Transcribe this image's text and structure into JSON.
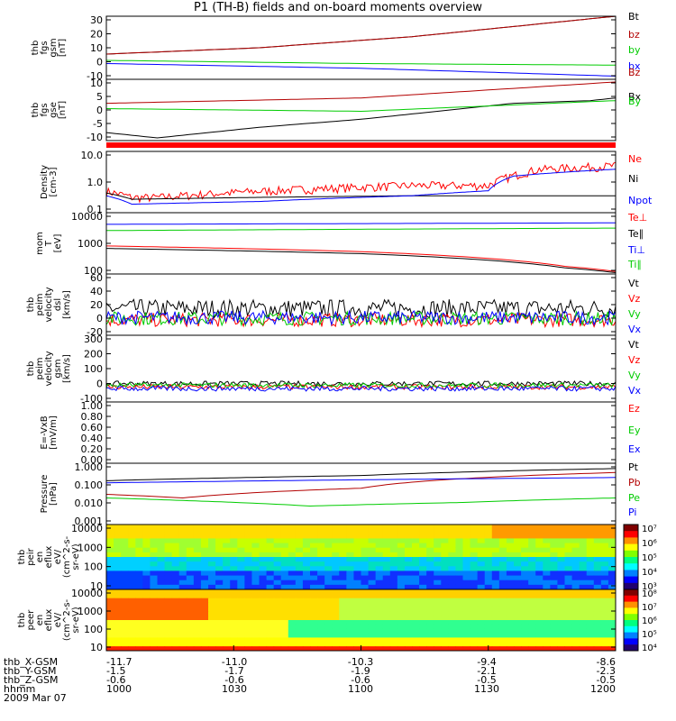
{
  "title": "P1 (TH-B) fields and on-board moments overview",
  "chart_data": [
    {
      "type": "line",
      "panel": "fgs",
      "ylabel": [
        "thb",
        "fgs",
        "gsm",
        "[nT]"
      ],
      "ylim": [
        -10,
        30
      ],
      "yticks": [
        "30",
        "20",
        "10",
        "0",
        "-10"
      ],
      "series": [
        {
          "name": "Bt",
          "color": "#000000",
          "x": [
            0,
            0.3,
            0.6,
            1.0
          ],
          "y": [
            6,
            10,
            17,
            30
          ]
        },
        {
          "name": "bz",
          "color": "#b30000",
          "x": [
            0,
            0.3,
            0.6,
            1.0
          ],
          "y": [
            6,
            10,
            17,
            30
          ]
        },
        {
          "name": "by",
          "color": "#00cc00",
          "x": [
            0,
            0.5,
            1.0
          ],
          "y": [
            2,
            0,
            -1
          ]
        },
        {
          "name": "bx",
          "color": "#0000ff",
          "x": [
            0,
            0.5,
            1.0
          ],
          "y": [
            0,
            -3,
            -8
          ]
        }
      ]
    },
    {
      "type": "line",
      "panel": "fgs-gse",
      "ylabel": [
        "thb",
        "fgs",
        "gse",
        "[nT]"
      ],
      "ylim": [
        -13,
        10
      ],
      "yticks": [
        "10",
        "5",
        "0",
        "-5",
        "-10"
      ],
      "series": [
        {
          "name": "Bz",
          "color": "#b30000",
          "x": [
            0,
            0.5,
            1.0
          ],
          "y": [
            1,
            3,
            9
          ]
        },
        {
          "name": "Bx",
          "color": "#000000",
          "x": [
            0,
            0.1,
            0.3,
            0.5,
            0.7,
            0.8,
            0.95,
            1.0
          ],
          "y": [
            -10,
            -12,
            -8,
            -5,
            -1,
            1,
            2,
            3
          ]
        },
        {
          "name": "By",
          "color": "#00cc00",
          "x": [
            0,
            0.5,
            1.0
          ],
          "y": [
            -1,
            -2,
            2
          ]
        }
      ]
    },
    {
      "type": "line",
      "panel": "density",
      "ylabel": [
        "Density",
        "[cm-3]"
      ],
      "log": true,
      "ylim": [
        0.1,
        15
      ],
      "yticks": [
        "10.0",
        "1.0",
        "0.1"
      ],
      "series": [
        {
          "name": "Ne",
          "color": "#ff0000",
          "x": [
            0,
            0.05,
            0.1,
            0.3,
            0.6,
            0.75,
            0.8,
            0.85,
            1.0
          ],
          "y": [
            0.5,
            0.3,
            0.3,
            0.5,
            0.8,
            0.8,
            1.8,
            3.0,
            4.0
          ]
        },
        {
          "name": "Ni",
          "color": "#000000",
          "x": [
            0,
            0.05,
            0.3,
            0.6,
            1.0
          ],
          "y": [
            0.5,
            0.3,
            0.35,
            0.4,
            0.4
          ]
        },
        {
          "name": "Npot",
          "color": "#0000ff",
          "x": [
            0,
            0.05,
            0.3,
            0.6,
            0.75,
            0.8,
            1.0
          ],
          "y": [
            0.4,
            0.2,
            0.25,
            0.4,
            0.6,
            2.0,
            3.5
          ]
        }
      ]
    },
    {
      "type": "line",
      "panel": "temperature",
      "ylabel": [
        "mom",
        "T",
        "[eV]"
      ],
      "log": true,
      "ylim": [
        40,
        10000
      ],
      "yticks": [
        "10000",
        "1000",
        "100"
      ],
      "series": [
        {
          "name": "Te⊥",
          "color": "#ff0000",
          "x": [
            0,
            0.5,
            0.9,
            1.0
          ],
          "y": [
            500,
            300,
            80,
            50
          ]
        },
        {
          "name": "Te∥",
          "color": "#000000",
          "x": [
            0,
            0.5,
            0.9,
            1.0
          ],
          "y": [
            400,
            250,
            70,
            45
          ]
        },
        {
          "name": "Ti⊥",
          "color": "#0000ff",
          "x": [
            0,
            1.0
          ],
          "y": [
            3500,
            4000
          ]
        },
        {
          "name": "Ti∥",
          "color": "#00cc00",
          "x": [
            0,
            1.0
          ],
          "y": [
            2000,
            2500
          ]
        }
      ]
    },
    {
      "type": "line",
      "panel": "peim-velocity-dsl",
      "ylabel": [
        "thb",
        "peim",
        "velocity",
        "dsl",
        "[km/s]"
      ],
      "ylim": [
        -20,
        60
      ],
      "yticks": [
        "60",
        "40",
        "20",
        "0",
        "-20"
      ],
      "series": [
        {
          "name": "Vt",
          "color": "#000000",
          "x": [
            0,
            1
          ],
          "y": [
            15,
            15
          ]
        },
        {
          "name": "Vz",
          "color": "#ff0000",
          "x": [
            0,
            1
          ],
          "y": [
            0,
            0
          ]
        },
        {
          "name": "Vy",
          "color": "#00cc00",
          "x": [
            0,
            1
          ],
          "y": [
            2,
            2
          ]
        },
        {
          "name": "Vx",
          "color": "#0000ff",
          "x": [
            0,
            1
          ],
          "y": [
            3,
            3
          ]
        }
      ]
    },
    {
      "type": "line",
      "panel": "peim-velocity-gsm",
      "ylabel": [
        "thb",
        "peim",
        "velocity",
        "gsm",
        "[km/s]"
      ],
      "ylim": [
        -100,
        300
      ],
      "yticks": [
        "300",
        "200",
        "100",
        "0",
        "-100"
      ],
      "series": [
        {
          "name": "Vt",
          "color": "#000000",
          "x": [
            0,
            1
          ],
          "y": [
            10,
            10
          ]
        },
        {
          "name": "Vz",
          "color": "#ff0000",
          "x": [
            0,
            1
          ],
          "y": [
            -10,
            -10
          ]
        },
        {
          "name": "Vy",
          "color": "#00cc00",
          "x": [
            0,
            1
          ],
          "y": [
            0,
            0
          ]
        },
        {
          "name": "Vx",
          "color": "#0000ff",
          "x": [
            0,
            1
          ],
          "y": [
            -20,
            -20
          ]
        }
      ]
    },
    {
      "type": "line",
      "panel": "e-vxb",
      "ylabel": [
        "E=-VxB",
        "[mV/m]"
      ],
      "ylim": [
        0,
        1
      ],
      "yticks": [
        "1.00",
        "0.80",
        "0.60",
        "0.40",
        "0.20",
        "0.00"
      ],
      "series": [
        {
          "name": "Ez",
          "color": "#ff0000",
          "x": [],
          "y": []
        },
        {
          "name": "Ey",
          "color": "#00cc00",
          "x": [],
          "y": []
        },
        {
          "name": "Ex",
          "color": "#0000ff",
          "x": [],
          "y": []
        }
      ]
    },
    {
      "type": "line",
      "panel": "pressure",
      "ylabel": [
        "Pressure",
        "[nPa]"
      ],
      "log": true,
      "ylim": [
        0.001,
        1.0
      ],
      "yticks": [
        "1.000",
        "0.100",
        "0.010",
        "0.001"
      ],
      "series": [
        {
          "name": "Pt",
          "color": "#000000",
          "x": [
            0,
            0.5,
            1.0
          ],
          "y": [
            0.14,
            0.25,
            0.55
          ]
        },
        {
          "name": "Pb",
          "color": "#b30000",
          "x": [
            0,
            0.15,
            0.5,
            1.0
          ],
          "y": [
            0.03,
            0.02,
            0.06,
            0.35
          ]
        },
        {
          "name": "Pe",
          "color": "#00cc00",
          "x": [
            0,
            0.15,
            0.4,
            0.7,
            1.0
          ],
          "y": [
            0.02,
            0.015,
            0.008,
            0.012,
            0.02
          ]
        },
        {
          "name": "Pi",
          "color": "#0000ff",
          "x": [
            0,
            1.0
          ],
          "y": [
            0.11,
            0.2
          ]
        }
      ]
    },
    {
      "type": "heatmap",
      "panel": "peir-en-eflux",
      "ylabel": [
        "thb",
        "peir",
        "en",
        "eflux",
        "eV/",
        "(cm^2-s-",
        "sr-eV)"
      ],
      "log": true,
      "ylim": [
        8,
        20000
      ],
      "yticks": [
        "10000",
        "1000",
        "100",
        "10"
      ],
      "colorbar_ticks": [
        "10⁷",
        "10⁶",
        "10⁵",
        "10⁴",
        "10³"
      ]
    },
    {
      "type": "heatmap",
      "panel": "peer-en-eflux",
      "ylabel": [
        "thb",
        "peer",
        "en",
        "eflux",
        "eV/",
        "(cm^2-s-",
        "sr-eV)"
      ],
      "log": true,
      "ylim": [
        8,
        20000
      ],
      "yticks": [
        "10000",
        "1000",
        "100",
        "10"
      ],
      "colorbar_ticks": [
        "10⁸",
        "10⁷",
        "10⁶",
        "10⁵",
        "10⁴"
      ]
    }
  ],
  "footer": {
    "rows": [
      {
        "label": "thb_X-GSM",
        "values": [
          "-11.7",
          "-11.0",
          "-10.3",
          "-9.4",
          "-8.6"
        ]
      },
      {
        "label": "thb_Y-GSM",
        "values": [
          "-1.5",
          "-1.7",
          "-1.9",
          "-2.1",
          "-2.3"
        ]
      },
      {
        "label": "thb_Z-GSM",
        "values": [
          "-0.6",
          "-0.6",
          "-0.6",
          "-0.5",
          "-0.5"
        ]
      },
      {
        "label": "hhmm",
        "values": [
          "1000",
          "1030",
          "1100",
          "1130",
          "1200"
        ]
      }
    ],
    "date": "2009 Mar 07"
  }
}
